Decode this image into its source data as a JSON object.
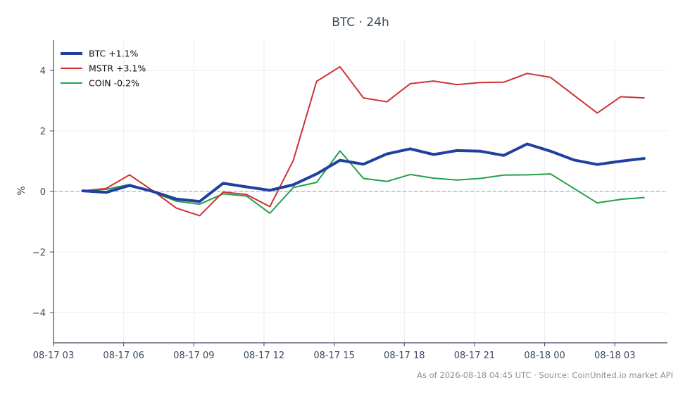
{
  "chart_data": {
    "type": "line",
    "title": "BTC · 24h",
    "xlabel": "",
    "ylabel": "%",
    "ylim": [
      -5,
      5
    ],
    "xlim": [
      "2026-08-17 03:00",
      "2026-08-18 05:15"
    ],
    "yticks": [
      -4,
      -2,
      0,
      2,
      4
    ],
    "ytick_labels": [
      "−4",
      "−2",
      "0",
      "2",
      "4"
    ],
    "xticks": [
      "2026-08-17 03:00",
      "2026-08-17 06:00",
      "2026-08-17 09:00",
      "2026-08-17 12:00",
      "2026-08-17 15:00",
      "2026-08-17 18:00",
      "2026-08-17 21:00",
      "2026-08-18 00:00",
      "2026-08-18 03:00"
    ],
    "xtick_labels": [
      "08-17 03",
      "08-17 06",
      "08-17 09",
      "08-17 12",
      "08-17 15",
      "08-17 18",
      "08-17 21",
      "08-18 00",
      "08-18 03"
    ],
    "zero_line": true,
    "grid": true,
    "legend_position": "top-left",
    "x": [
      "2026-08-17 04:15",
      "2026-08-17 05:15",
      "2026-08-17 06:15",
      "2026-08-17 07:15",
      "2026-08-17 08:15",
      "2026-08-17 09:15",
      "2026-08-17 10:15",
      "2026-08-17 11:15",
      "2026-08-17 12:15",
      "2026-08-17 13:15",
      "2026-08-17 14:15",
      "2026-08-17 15:15",
      "2026-08-17 16:15",
      "2026-08-17 17:15",
      "2026-08-17 18:15",
      "2026-08-17 19:15",
      "2026-08-17 20:15",
      "2026-08-17 21:15",
      "2026-08-17 22:15",
      "2026-08-17 23:15",
      "2026-08-18 00:15",
      "2026-08-18 01:15",
      "2026-08-18 02:15",
      "2026-08-18 03:15",
      "2026-08-18 04:15"
    ],
    "series": [
      {
        "name": "BTC +1.1%",
        "color": "#2040a0",
        "values": [
          0.02,
          -0.03,
          0.2,
          0.0,
          -0.25,
          -0.33,
          0.27,
          0.15,
          0.04,
          0.22,
          0.58,
          1.03,
          0.9,
          1.24,
          1.41,
          1.22,
          1.35,
          1.33,
          1.19,
          1.57,
          1.33,
          1.04,
          0.89,
          1.0,
          1.09
        ]
      },
      {
        "name": "MSTR +3.1%",
        "color": "#cc3333",
        "values": [
          0.02,
          0.1,
          0.55,
          0.02,
          -0.55,
          -0.8,
          -0.02,
          -0.1,
          -0.5,
          1.02,
          3.64,
          4.12,
          3.09,
          2.96,
          3.56,
          3.65,
          3.53,
          3.6,
          3.61,
          3.9,
          3.77,
          3.18,
          2.59,
          3.13,
          3.09
        ]
      },
      {
        "name": "COIN -0.2%",
        "color": "#22a04a",
        "values": [
          0.02,
          0.07,
          0.23,
          -0.02,
          -0.32,
          -0.42,
          -0.08,
          -0.15,
          -0.72,
          0.13,
          0.3,
          1.34,
          0.43,
          0.33,
          0.56,
          0.44,
          0.38,
          0.43,
          0.54,
          0.55,
          0.58,
          0.1,
          -0.38,
          -0.26,
          -0.2
        ]
      }
    ]
  },
  "footer": "As of 2026-08-18 04:45 UTC · Source: CoinUnited.io market API"
}
